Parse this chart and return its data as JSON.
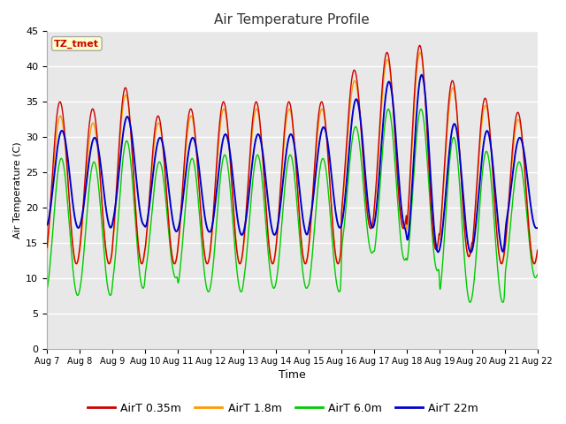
{
  "title": "Air Temperature Profile",
  "xlabel": "Time",
  "ylabel": "Air Temperature (C)",
  "ylim": [
    0,
    45
  ],
  "background_color": "#ffffff",
  "plot_bg_color": "#e8e8e8",
  "grid_color": "#ffffff",
  "line_colors": {
    "AirT 0.35m": "#cc0000",
    "AirT 1.8m": "#ff9900",
    "AirT 6.0m": "#00cc00",
    "AirT 22m": "#0000cc"
  },
  "annotation_text": "TZ_tmet",
  "annotation_color": "#cc0000",
  "annotation_bg": "#ffffcc",
  "x_tick_labels": [
    "Aug 7",
    "Aug 8",
    "Aug 9",
    "Aug 10",
    "Aug 11",
    "Aug 12",
    "Aug 13",
    "Aug 14",
    "Aug 15",
    "Aug 16",
    "Aug 17",
    "Aug 18",
    "Aug 19",
    "Aug 20",
    "Aug 21",
    "Aug 22"
  ],
  "legend_entries": [
    "AirT 0.35m",
    "AirT 1.8m",
    "AirT 6.0m",
    "AirT 22m"
  ]
}
